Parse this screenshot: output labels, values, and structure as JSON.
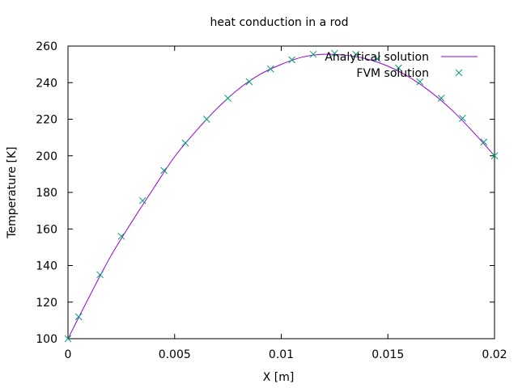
{
  "chart_data": {
    "type": "line",
    "title": "heat conduction in a rod",
    "xlabel": "X [m]",
    "ylabel": "Temperature [K]",
    "xlim": [
      0,
      0.02
    ],
    "ylim": [
      100,
      260
    ],
    "xticks": [
      0,
      0.005,
      0.01,
      0.015,
      0.02
    ],
    "xtick_labels": [
      "0",
      "0.005",
      "0.01",
      "0.015",
      "0.02"
    ],
    "yticks": [
      100,
      120,
      140,
      160,
      180,
      200,
      220,
      240,
      260
    ],
    "ytick_labels": [
      "100",
      "120",
      "140",
      "160",
      "180",
      "200",
      "220",
      "240",
      "260"
    ],
    "grid": false,
    "legend_position": "top-right",
    "series": [
      {
        "name": "Analytical solution",
        "kind": "line",
        "color": "#9400d3",
        "x": [
          0,
          0.001,
          0.002,
          0.003,
          0.004,
          0.005,
          0.006,
          0.007,
          0.008,
          0.009,
          0.01,
          0.011,
          0.012,
          0.013,
          0.014,
          0.015,
          0.016,
          0.017,
          0.018,
          0.019,
          0.02
        ],
        "y": [
          100,
          123.0,
          145.0,
          164.0,
          182.0,
          199.5,
          213.5,
          226.0,
          236.5,
          244.5,
          250.0,
          254.0,
          255.5,
          255.0,
          253.0,
          249.0,
          243.0,
          235.0,
          225.0,
          213.0,
          200.0
        ]
      },
      {
        "name": "FVM solution",
        "kind": "scatter",
        "marker": "x",
        "color": "#009e73",
        "x": [
          0,
          0.0005,
          0.0015,
          0.0025,
          0.0035,
          0.0045,
          0.0055,
          0.0065,
          0.0075,
          0.0085,
          0.0095,
          0.0105,
          0.0115,
          0.0125,
          0.0135,
          0.0145,
          0.0155,
          0.0165,
          0.0175,
          0.0185,
          0.0195,
          0.02
        ],
        "y": [
          100,
          112,
          135,
          156,
          175.5,
          192,
          207,
          220,
          231.5,
          240.5,
          247.5,
          252.5,
          255.5,
          256,
          255.5,
          253,
          248,
          240.5,
          231.5,
          220.5,
          207.5,
          200
        ]
      }
    ]
  }
}
